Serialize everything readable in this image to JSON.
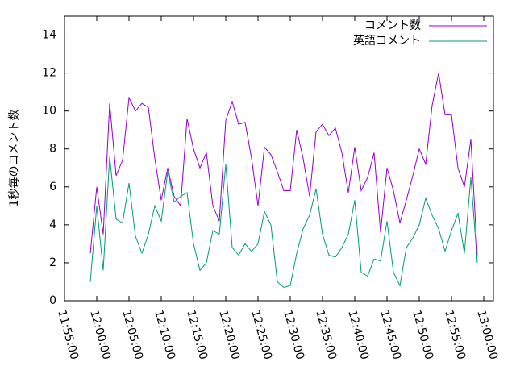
{
  "chart_data": {
    "type": "line",
    "ylabel": "1秒毎のコメント数",
    "x": [
      "11:59:00",
      "12:00:00",
      "12:01:00",
      "12:02:00",
      "12:03:00",
      "12:04:00",
      "12:05:00",
      "12:06:00",
      "12:07:00",
      "12:08:00",
      "12:09:00",
      "12:10:00",
      "12:11:00",
      "12:12:00",
      "12:13:00",
      "12:14:00",
      "12:15:00",
      "12:16:00",
      "12:17:00",
      "12:18:00",
      "12:19:00",
      "12:20:00",
      "12:21:00",
      "12:22:00",
      "12:23:00",
      "12:24:00",
      "12:25:00",
      "12:26:00",
      "12:27:00",
      "12:28:00",
      "12:29:00",
      "12:30:00",
      "12:31:00",
      "12:32:00",
      "12:33:00",
      "12:34:00",
      "12:35:00",
      "12:36:00",
      "12:37:00",
      "12:38:00",
      "12:39:00",
      "12:40:00",
      "12:41:00",
      "12:42:00",
      "12:43:00",
      "12:44:00",
      "12:45:00",
      "12:46:00",
      "12:47:00",
      "12:48:00",
      "12:49:00",
      "12:50:00",
      "12:51:00",
      "12:52:00",
      "12:53:00",
      "12:54:00",
      "12:55:00",
      "12:56:00",
      "12:57:00",
      "12:58:00",
      "12:59:00"
    ],
    "series": [
      {
        "name": "コメント数",
        "color": "#9400d3",
        "values": [
          2.5,
          6.0,
          3.5,
          10.4,
          6.6,
          7.4,
          10.7,
          10.0,
          10.4,
          10.2,
          7.5,
          5.3,
          7.0,
          5.5,
          5.0,
          9.6,
          8.0,
          7.0,
          7.8,
          5.0,
          4.2,
          9.5,
          10.5,
          9.3,
          9.4,
          7.5,
          5.0,
          8.1,
          7.7,
          6.8,
          5.8,
          5.8,
          9.0,
          7.5,
          5.5,
          8.9,
          9.3,
          8.7,
          9.1,
          7.8,
          5.7,
          8.1,
          5.8,
          6.5,
          7.8,
          3.6,
          7.0,
          5.8,
          4.1,
          5.3,
          6.6,
          8.0,
          7.2,
          10.3,
          12.0,
          9.8,
          9.8,
          7.0,
          6.0,
          8.5,
          2.4
        ]
      },
      {
        "name": "英語コメント",
        "color": "#009e73",
        "values": [
          1.0,
          5.0,
          1.6,
          7.6,
          4.3,
          4.1,
          6.2,
          3.4,
          2.5,
          3.5,
          5.0,
          4.2,
          6.8,
          5.2,
          5.5,
          5.7,
          3.0,
          1.6,
          2.0,
          3.7,
          3.5,
          7.2,
          2.8,
          2.4,
          3.0,
          2.6,
          3.0,
          4.7,
          4.0,
          1.0,
          0.7,
          0.8,
          2.5,
          3.8,
          4.5,
          5.9,
          3.5,
          2.4,
          2.3,
          2.8,
          3.5,
          5.3,
          1.5,
          1.3,
          2.2,
          2.1,
          4.2,
          1.5,
          0.8,
          2.8,
          3.3,
          4.0,
          5.4,
          4.5,
          3.8,
          2.6,
          3.7,
          4.6,
          2.5,
          6.5,
          2.0
        ]
      }
    ],
    "xlim": [
      "11:55:00",
      "13:01:30"
    ],
    "xticks": [
      "11:55:00",
      "12:00:00",
      "12:05:00",
      "12:10:00",
      "12:15:00",
      "12:20:00",
      "12:25:00",
      "12:30:00",
      "12:35:00",
      "12:40:00",
      "12:45:00",
      "12:50:00",
      "12:55:00",
      "13:00:00"
    ],
    "ylim": [
      0,
      15
    ],
    "yticks": [
      0,
      2,
      4,
      6,
      8,
      10,
      12,
      14
    ],
    "legend": "top-right"
  }
}
